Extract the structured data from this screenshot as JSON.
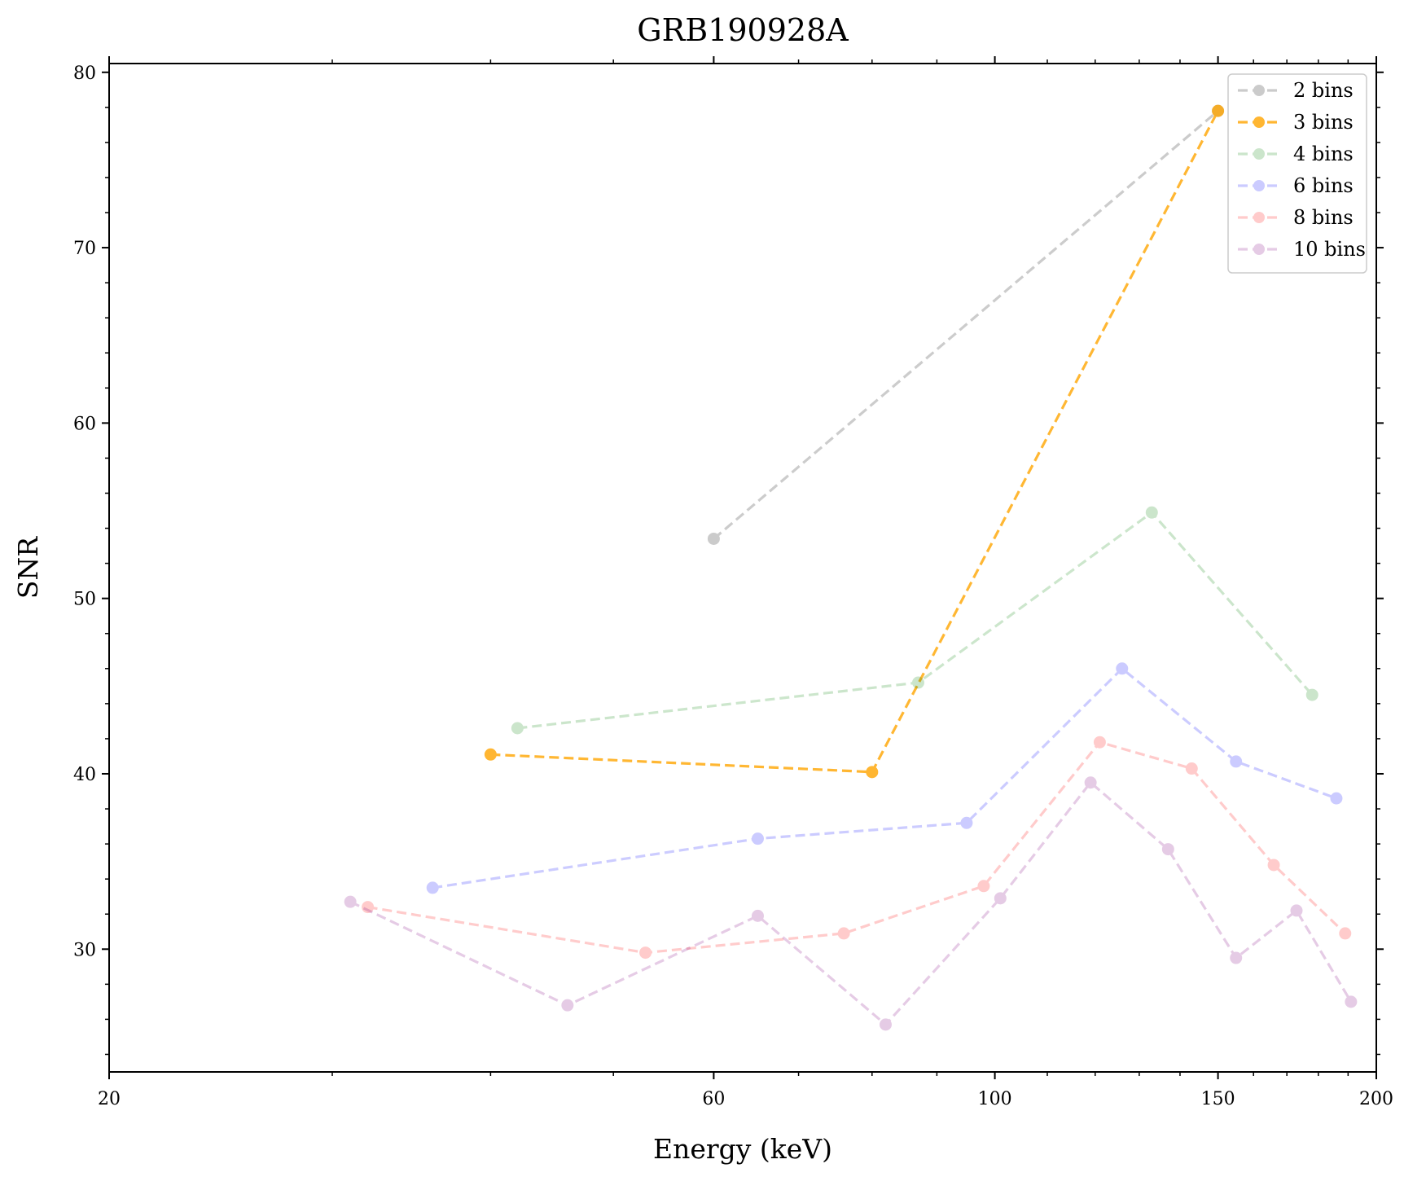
{
  "chart_data": {
    "type": "line",
    "title": "GRB190928A",
    "xlabel": "Energy (keV)",
    "ylabel": "SNR",
    "x_scale": "log",
    "xlim": [
      20,
      200
    ],
    "ylim": [
      23,
      80.5
    ],
    "x_ticks": [
      20,
      60,
      100,
      150,
      200
    ],
    "y_ticks": [
      30,
      40,
      50,
      60,
      70,
      80
    ],
    "legend_position": "top-right",
    "series": [
      {
        "name": "2 bins",
        "color": "#808080",
        "opacity": 0.4,
        "points": [
          [
            60,
            53.4
          ],
          [
            150,
            77.8
          ]
        ]
      },
      {
        "name": "3 bins",
        "color": "#ffa500",
        "opacity": 0.8,
        "points": [
          [
            40,
            41.1
          ],
          [
            80,
            40.1
          ],
          [
            150,
            77.8
          ]
        ]
      },
      {
        "name": "4 bins",
        "color": "#008000",
        "opacity": 0.2,
        "points": [
          [
            42,
            42.6
          ],
          [
            87,
            45.2
          ],
          [
            133,
            54.9
          ],
          [
            178,
            44.5
          ]
        ]
      },
      {
        "name": "6 bins",
        "color": "#0000ff",
        "opacity": 0.2,
        "points": [
          [
            36,
            33.5
          ],
          [
            65,
            36.3
          ],
          [
            95,
            37.2
          ],
          [
            126,
            46.0
          ],
          [
            155,
            40.7
          ],
          [
            186,
            38.6
          ]
        ]
      },
      {
        "name": "8 bins",
        "color": "#ff0000",
        "opacity": 0.2,
        "points": [
          [
            32,
            32.4
          ],
          [
            53,
            29.8
          ],
          [
            76,
            30.9
          ],
          [
            98,
            33.6
          ],
          [
            121,
            41.8
          ],
          [
            143,
            40.3
          ],
          [
            166,
            34.8
          ],
          [
            189,
            30.9
          ]
        ]
      },
      {
        "name": "10 bins",
        "color": "#800080",
        "opacity": 0.2,
        "points": [
          [
            31,
            32.7
          ],
          [
            46,
            26.8
          ],
          [
            65,
            31.9
          ],
          [
            82,
            25.7
          ],
          [
            101,
            32.9
          ],
          [
            119,
            39.5
          ],
          [
            137,
            35.7
          ],
          [
            155,
            29.5
          ],
          [
            173,
            32.2
          ],
          [
            191,
            27.0
          ]
        ]
      }
    ]
  }
}
